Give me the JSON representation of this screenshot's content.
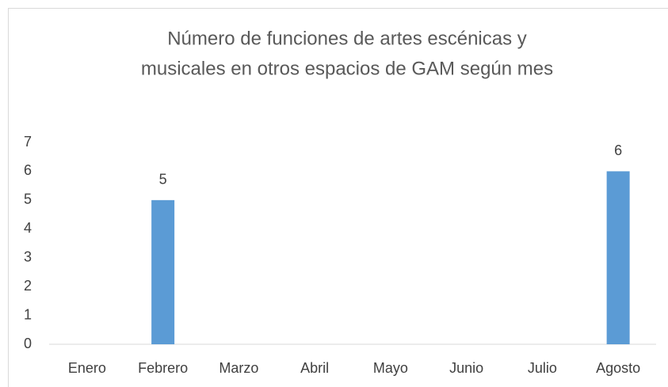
{
  "chart_data": {
    "type": "bar",
    "title": [
      "Número de funciones de artes escénicas y",
      "musicales en otros espacios de GAM según mes"
    ],
    "categories": [
      "Enero",
      "Febrero",
      "Marzo",
      "Abril",
      "Mayo",
      "Junio",
      "Julio",
      "Agosto"
    ],
    "values": [
      null,
      5,
      null,
      null,
      null,
      null,
      null,
      6
    ],
    "color": "#5b9bd5",
    "ylim": [
      0,
      7
    ],
    "yticks": [
      0,
      1,
      2,
      3,
      4,
      5,
      6,
      7
    ],
    "grid": false
  }
}
